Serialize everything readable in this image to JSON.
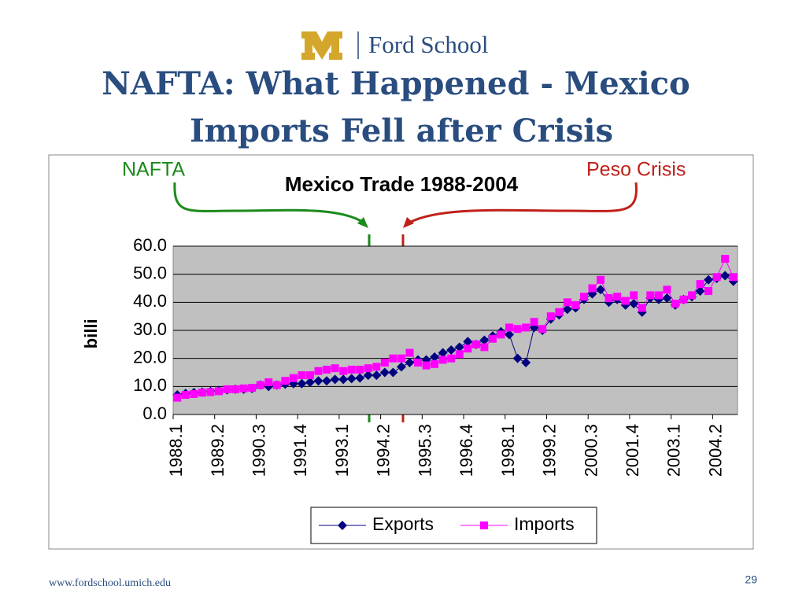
{
  "logo_text": "Ford School",
  "slide_title": [
    "NAFTA: What Happened - Mexico",
    "Imports Fell after Crisis"
  ],
  "footer_url": "www.fordschool.umich.edu",
  "page_number": "29",
  "chart_data": {
    "type": "line",
    "title": "Mexico Trade 1988-2004",
    "y_label": "$ billion",
    "annotations": [
      {
        "text": "NAFTA",
        "color": "#1a8a1a"
      },
      {
        "text": "Peso Crisis",
        "color": "#c0201a"
      }
    ],
    "categories": [
      "1988.1",
      null,
      null,
      null,
      null,
      "1989.2",
      null,
      null,
      null,
      null,
      "1990.3",
      null,
      null,
      null,
      null,
      "1991.4",
      null,
      null,
      null,
      null,
      "1993.1",
      null,
      null,
      null,
      null,
      "1994.2",
      null,
      null,
      null,
      null,
      "1995.3",
      null,
      null,
      null,
      null,
      "1996.4",
      null,
      null,
      null,
      null,
      "1998.1",
      null,
      null,
      null,
      null,
      "1999.2",
      null,
      null,
      null,
      null,
      "2000.3",
      null,
      null,
      null,
      null,
      "2001.4",
      null,
      null,
      null,
      null,
      "2003.1",
      null,
      null,
      null,
      null,
      "2004.2",
      null,
      null
    ],
    "series": [
      {
        "name": "Exports",
        "color": "#000080",
        "marker": "diamond",
        "values": [
          7,
          7.5,
          7.8,
          8,
          8.2,
          8.5,
          8.8,
          9,
          9,
          9.3,
          10.5,
          10,
          10.5,
          10.8,
          11,
          11,
          11.5,
          12,
          12,
          12.5,
          12.5,
          12.8,
          13,
          14,
          14,
          15,
          15,
          17,
          18.5,
          19.5,
          19.5,
          20.5,
          22,
          23,
          24,
          26,
          25,
          26.5,
          28,
          29.5,
          28.5,
          20,
          18.5,
          31,
          30,
          34,
          35.5,
          37.5,
          38,
          41,
          43,
          44.5,
          40,
          41,
          39,
          39.5,
          36.5,
          41.5,
          41,
          41.5,
          39,
          41,
          42,
          44,
          48,
          48.5,
          49.5,
          47.5
        ]
      },
      {
        "name": "Imports",
        "color": "#ff00ff",
        "marker": "square",
        "values": [
          6,
          7,
          7.3,
          7.8,
          8,
          8.3,
          9,
          9,
          9.3,
          9.5,
          10.5,
          11.5,
          10.5,
          12,
          13,
          14,
          14,
          15.5,
          16,
          16.5,
          15.5,
          16,
          16,
          16.5,
          17,
          18.5,
          20,
          20,
          22,
          18.5,
          17.5,
          18,
          19.5,
          20,
          21.5,
          23.5,
          25,
          24,
          27,
          28.5,
          31,
          30.5,
          31,
          33,
          30.5,
          35,
          36.5,
          40,
          39,
          42,
          45,
          48,
          41.5,
          42,
          40.5,
          42.5,
          38,
          42.5,
          42.5,
          44.5,
          39.5,
          41,
          42.5,
          46.5,
          44,
          49,
          55.5,
          49
        ]
      }
    ],
    "ylim": [
      0,
      60
    ],
    "yticks": [
      {
        "value": 0,
        "label": "0.0"
      },
      {
        "value": 10,
        "label": "10.0"
      },
      {
        "value": 20,
        "label": "20.0"
      },
      {
        "value": 30,
        "label": "30.0"
      },
      {
        "value": 40,
        "label": "40.0"
      },
      {
        "value": 50,
        "label": "50.0"
      },
      {
        "value": 60,
        "label": "60.0"
      }
    ],
    "grid": true,
    "legend": "bottom"
  }
}
